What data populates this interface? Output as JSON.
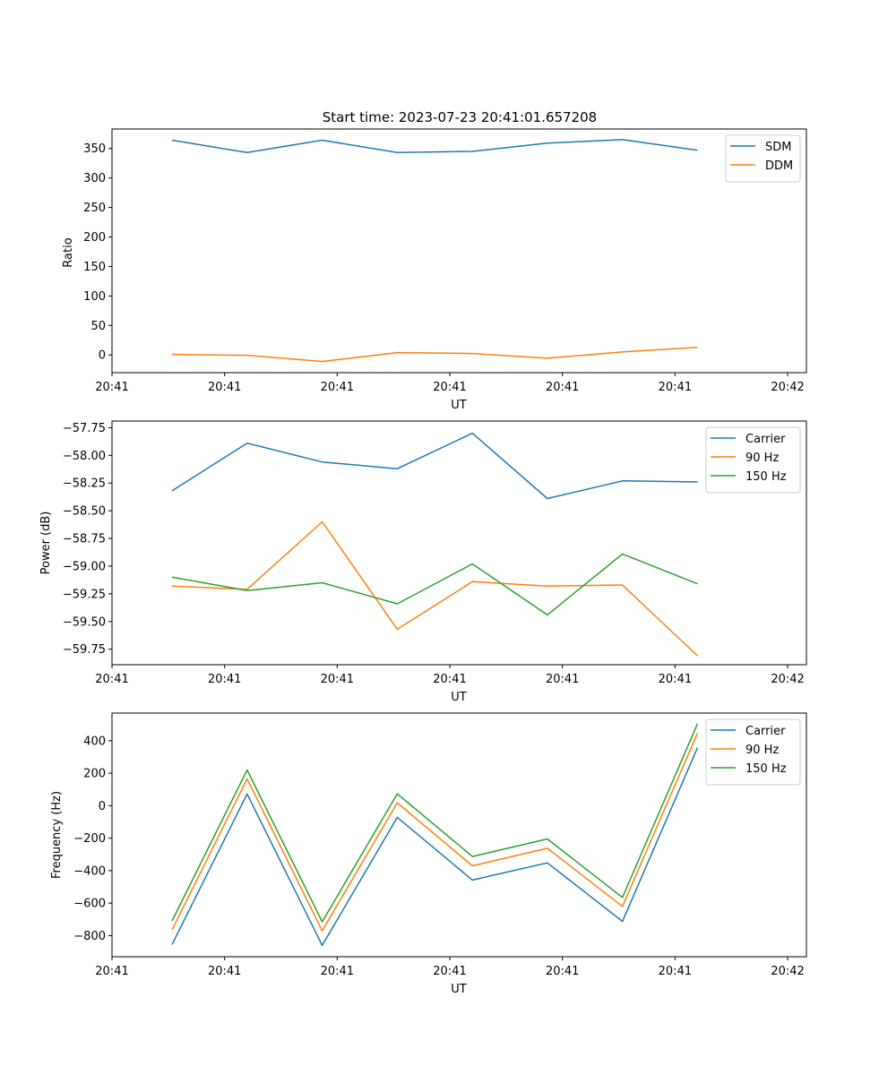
{
  "figure_title": "Start time: 2023-07-23 20:41:01.657208",
  "colors": {
    "blue": "#1f77b4",
    "orange": "#ff7f0e",
    "green": "#2ca02c"
  },
  "chart_data": [
    {
      "type": "line",
      "title": "Start time: 2023-07-23 20:41:01.657208",
      "xlabel": "UT",
      "ylabel": "Ratio",
      "x": [
        1,
        2,
        3,
        4,
        5,
        6,
        7,
        8
      ],
      "xlim": [
        0.2,
        9.45
      ],
      "xticks": [
        {
          "value": 0.2,
          "label": "20:41"
        },
        {
          "value": 1.7,
          "label": "20:41"
        },
        {
          "value": 3.2,
          "label": "20:41"
        },
        {
          "value": 4.7,
          "label": "20:41"
        },
        {
          "value": 6.2,
          "label": "20:41"
        },
        {
          "value": 7.7,
          "label": "20:41"
        },
        {
          "value": 9.2,
          "label": "20:42"
        }
      ],
      "ylim": [
        -30,
        383
      ],
      "yticks": [
        0,
        50,
        100,
        150,
        200,
        250,
        300,
        350
      ],
      "legend_position": "top-right",
      "series": [
        {
          "name": "SDM",
          "color": "#1f77b4",
          "values": [
            364,
            343,
            364,
            343,
            345,
            359,
            365,
            347
          ]
        },
        {
          "name": "DDM",
          "color": "#ff7f0e",
          "values": [
            1,
            -0.5,
            -11,
            4,
            2.5,
            -5.5,
            5,
            13
          ]
        }
      ]
    },
    {
      "type": "line",
      "title": "",
      "xlabel": "UT",
      "ylabel": "Power (dB)",
      "x": [
        1,
        2,
        3,
        4,
        5,
        6,
        7,
        8
      ],
      "xlim": [
        0.2,
        9.45
      ],
      "xticks": [
        {
          "value": 0.2,
          "label": "20:41"
        },
        {
          "value": 1.7,
          "label": "20:41"
        },
        {
          "value": 3.2,
          "label": "20:41"
        },
        {
          "value": 4.7,
          "label": "20:41"
        },
        {
          "value": 6.2,
          "label": "20:41"
        },
        {
          "value": 7.7,
          "label": "20:41"
        },
        {
          "value": 9.2,
          "label": "20:42"
        }
      ],
      "ylim": [
        -59.89,
        -57.69
      ],
      "yticks": [
        -59.75,
        -59.5,
        -59.25,
        -59.0,
        -58.75,
        -58.5,
        -58.25,
        -58.0,
        -57.75
      ],
      "ytick_labels": [
        "−59.75",
        "−59.50",
        "−59.25",
        "−59.00",
        "−58.75",
        "−58.50",
        "−58.25",
        "−58.00",
        "−57.75"
      ],
      "legend_position": "top-right",
      "series": [
        {
          "name": "Carrier",
          "color": "#1f77b4",
          "values": [
            -58.32,
            -57.89,
            -58.06,
            -58.12,
            -57.8,
            -58.39,
            -58.23,
            -58.24
          ]
        },
        {
          "name": "90 Hz",
          "color": "#ff7f0e",
          "values": [
            -59.18,
            -59.21,
            -58.6,
            -59.57,
            -59.14,
            -59.18,
            -59.17,
            -59.81
          ]
        },
        {
          "name": "150 Hz",
          "color": "#2ca02c",
          "values": [
            -59.1,
            -59.22,
            -59.15,
            -59.34,
            -58.98,
            -59.44,
            -58.89,
            -59.16
          ]
        }
      ]
    },
    {
      "type": "line",
      "title": "",
      "xlabel": "UT",
      "ylabel": "Frequency (Hz)",
      "x": [
        1,
        2,
        3,
        4,
        5,
        6,
        7,
        8
      ],
      "xlim": [
        0.2,
        9.45
      ],
      "xticks": [
        {
          "value": 0.2,
          "label": "20:41"
        },
        {
          "value": 1.7,
          "label": "20:41"
        },
        {
          "value": 3.2,
          "label": "20:41"
        },
        {
          "value": 4.7,
          "label": "20:41"
        },
        {
          "value": 6.2,
          "label": "20:41"
        },
        {
          "value": 7.7,
          "label": "20:41"
        },
        {
          "value": 9.2,
          "label": "20:42"
        }
      ],
      "ylim": [
        -930,
        570
      ],
      "yticks": [
        -800,
        -600,
        -400,
        -200,
        0,
        200,
        400
      ],
      "ytick_labels": [
        "−800",
        "−600",
        "−400",
        "−200",
        "0",
        "200",
        "400"
      ],
      "legend_position": "top-right",
      "series": [
        {
          "name": "Carrier",
          "color": "#1f77b4",
          "values": [
            -855,
            72,
            -860,
            -72,
            -458,
            -352,
            -712,
            357
          ]
        },
        {
          "name": "90 Hz",
          "color": "#ff7f0e",
          "values": [
            -765,
            165,
            -770,
            18,
            -370,
            -262,
            -620,
            447
          ]
        },
        {
          "name": "150 Hz",
          "color": "#2ca02c",
          "values": [
            -710,
            220,
            -715,
            73,
            -313,
            -205,
            -565,
            505
          ]
        }
      ]
    }
  ]
}
